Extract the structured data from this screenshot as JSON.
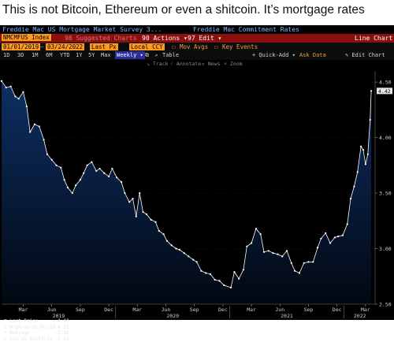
{
  "caption": "This is not Bitcoin, Ethereum or even a shitcoin. It’s mortgage rates",
  "terminal": {
    "title_left": "Freddie Mac US Mortgage Market Survey 3...",
    "title_right": "Freddie Mac Commitment Rates",
    "ticker": "NMCMFUS Index",
    "ticker_ghost": "98 Suggested Charts",
    "actions_label": "90 Actions ▾",
    "edit_label": "97 Edit ▾",
    "line_chart_label": "Line Chart",
    "start_date": "01/01/2019",
    "end_date": "03/24/2022",
    "last_px_label": "Last Px",
    "currency_label": "Local CCY",
    "mov_avgs_label": "Mov Avgs",
    "key_events_label": "Key Events",
    "quick_add_label": "+ Quick-Add ▾",
    "ask_data_label": "Ask Data",
    "edit_chart_label": "✎ Edit Chart",
    "periods": [
      "1D",
      "3D",
      "1M",
      "6M",
      "YTD",
      "1Y",
      "5Y",
      "Max"
    ],
    "frequency_label": "Weekly ▾",
    "table_label": "Table",
    "tools": [
      "Track",
      "Annotate",
      "News",
      "Zoom"
    ],
    "legend": [
      {
        "label": "Last Price",
        "value": "4.42"
      },
      {
        "label": "High on 01/03/19",
        "value": "4.51"
      },
      {
        "label": "Average",
        "value": "3.36"
      },
      {
        "label": "Low on 01/07/21",
        "value": "2.65"
      }
    ],
    "last_value_label": "4.42"
  },
  "colors": {
    "title_blue": "#7fb7ff",
    "header_red": "#8a0f0f",
    "accent_orange": "#ff9a1e",
    "selected_blue": "#2a2d9c",
    "line": "#ffffff",
    "area_top": "#0d2f63"
  },
  "chart_data": {
    "type": "area",
    "ylim": [
      2.5,
      4.6
    ],
    "yticks": [
      2.5,
      3.0,
      3.5,
      4.0,
      4.5
    ],
    "ytick_labels": [
      "2.50",
      "3.00",
      "3.50",
      "4.00",
      "4.50"
    ],
    "xticks": [
      {
        "label": "Mar",
        "x": 2019.19
      },
      {
        "label": "Jun",
        "x": 2019.44
      },
      {
        "label": "Sep",
        "x": 2019.69
      },
      {
        "label": "Dec",
        "x": 2019.94
      },
      {
        "label": "Mar",
        "x": 2020.19
      },
      {
        "label": "Jun",
        "x": 2020.44
      },
      {
        "label": "Sep",
        "x": 2020.69
      },
      {
        "label": "Dec",
        "x": 2020.94
      },
      {
        "label": "Mar",
        "x": 2021.19
      },
      {
        "label": "Jun",
        "x": 2021.44
      },
      {
        "label": "Sep",
        "x": 2021.69
      },
      {
        "label": "Dec",
        "x": 2021.94
      },
      {
        "label": "Mar",
        "x": 2022.19
      }
    ],
    "years": [
      {
        "label": "2019",
        "x": 2019.5
      },
      {
        "label": "2020",
        "x": 2020.5
      },
      {
        "label": "2021",
        "x": 2021.5
      },
      {
        "label": "2022",
        "x": 2022.14
      }
    ],
    "xlim": [
      2019.0,
      2022.26
    ],
    "series": [
      {
        "values": [
          [
            2019.0,
            4.51
          ],
          [
            2019.04,
            4.45
          ],
          [
            2019.08,
            4.46
          ],
          [
            2019.12,
            4.37
          ],
          [
            2019.15,
            4.35
          ],
          [
            2019.19,
            4.41
          ],
          [
            2019.22,
            4.28
          ],
          [
            2019.25,
            4.05
          ],
          [
            2019.29,
            4.12
          ],
          [
            2019.33,
            4.1
          ],
          [
            2019.37,
            3.98
          ],
          [
            2019.4,
            3.85
          ],
          [
            2019.44,
            3.8
          ],
          [
            2019.48,
            3.75
          ],
          [
            2019.52,
            3.73
          ],
          [
            2019.55,
            3.62
          ],
          [
            2019.58,
            3.55
          ],
          [
            2019.62,
            3.5
          ],
          [
            2019.65,
            3.57
          ],
          [
            2019.69,
            3.62
          ],
          [
            2019.72,
            3.68
          ],
          [
            2019.75,
            3.75
          ],
          [
            2019.79,
            3.78
          ],
          [
            2019.83,
            3.7
          ],
          [
            2019.86,
            3.72
          ],
          [
            2019.9,
            3.68
          ],
          [
            2019.94,
            3.65
          ],
          [
            2019.97,
            3.72
          ],
          [
            2020.01,
            3.64
          ],
          [
            2020.05,
            3.6
          ],
          [
            2020.08,
            3.5
          ],
          [
            2020.12,
            3.42
          ],
          [
            2020.15,
            3.45
          ],
          [
            2020.18,
            3.29
          ],
          [
            2020.21,
            3.5
          ],
          [
            2020.24,
            3.33
          ],
          [
            2020.27,
            3.31
          ],
          [
            2020.31,
            3.26
          ],
          [
            2020.35,
            3.24
          ],
          [
            2020.38,
            3.16
          ],
          [
            2020.42,
            3.13
          ],
          [
            2020.45,
            3.07
          ],
          [
            2020.49,
            3.03
          ],
          [
            2020.53,
            3.0
          ],
          [
            2020.56,
            2.99
          ],
          [
            2020.6,
            2.96
          ],
          [
            2020.64,
            2.93
          ],
          [
            2020.68,
            2.9
          ],
          [
            2020.71,
            2.88
          ],
          [
            2020.75,
            2.8
          ],
          [
            2020.79,
            2.78
          ],
          [
            2020.83,
            2.77
          ],
          [
            2020.87,
            2.72
          ],
          [
            2020.91,
            2.71
          ],
          [
            2020.95,
            2.67
          ],
          [
            2021.01,
            2.65
          ],
          [
            2021.04,
            2.79
          ],
          [
            2021.08,
            2.73
          ],
          [
            2021.12,
            2.81
          ],
          [
            2021.15,
            3.02
          ],
          [
            2021.19,
            3.05
          ],
          [
            2021.23,
            3.18
          ],
          [
            2021.27,
            3.13
          ],
          [
            2021.3,
            2.97
          ],
          [
            2021.34,
            2.98
          ],
          [
            2021.38,
            2.96
          ],
          [
            2021.42,
            2.95
          ],
          [
            2021.46,
            2.93
          ],
          [
            2021.5,
            2.98
          ],
          [
            2021.54,
            2.87
          ],
          [
            2021.57,
            2.8
          ],
          [
            2021.61,
            2.78
          ],
          [
            2021.65,
            2.87
          ],
          [
            2021.69,
            2.88
          ],
          [
            2021.73,
            2.88
          ],
          [
            2021.77,
            3.01
          ],
          [
            2021.8,
            3.09
          ],
          [
            2021.84,
            3.14
          ],
          [
            2021.88,
            3.05
          ],
          [
            2021.92,
            3.1
          ],
          [
            2021.95,
            3.11
          ],
          [
            2021.99,
            3.12
          ],
          [
            2022.03,
            3.22
          ],
          [
            2022.06,
            3.45
          ],
          [
            2022.09,
            3.56
          ],
          [
            2022.12,
            3.69
          ],
          [
            2022.15,
            3.92
          ],
          [
            2022.17,
            3.89
          ],
          [
            2022.19,
            3.76
          ],
          [
            2022.21,
            3.85
          ],
          [
            2022.23,
            4.16
          ],
          [
            2022.24,
            4.42
          ]
        ]
      }
    ]
  }
}
